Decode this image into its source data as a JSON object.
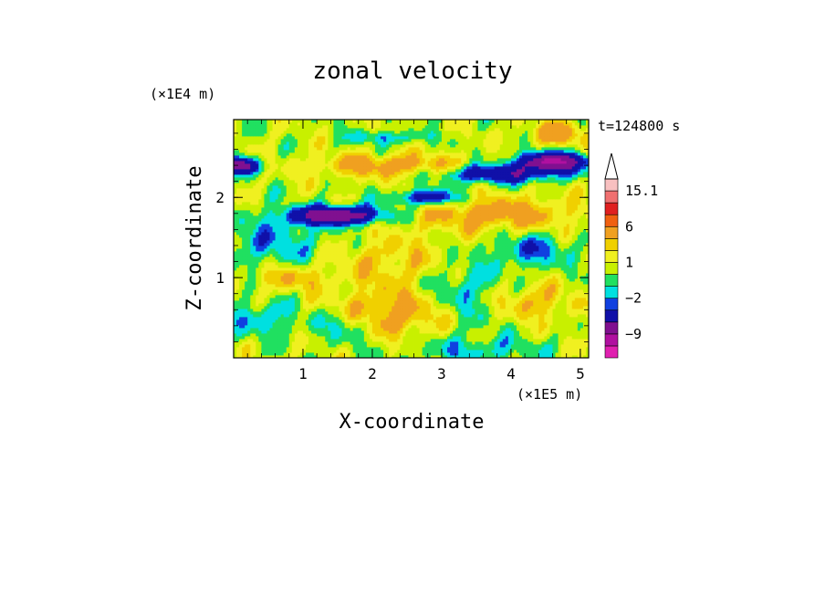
{
  "chart_data": {
    "type": "heatmap",
    "title": "zonal velocity",
    "xlabel": "X-coordinate",
    "ylabel": "Z-coordinate",
    "x_scale_label": "(×1E5 m)",
    "y_scale_label": "(×1E4 m)",
    "time_label": "t=124800 s",
    "xlim": [
      0,
      5.12
    ],
    "ylim": [
      0,
      2.97
    ],
    "x_ticks": [
      "1",
      "2",
      "3",
      "4",
      "5"
    ],
    "y_ticks": [
      "1",
      "2"
    ],
    "colorbar": {
      "levels": [
        -15.1,
        -12,
        -9,
        -6,
        -3,
        -2,
        -1,
        0,
        1,
        2,
        3,
        6,
        9,
        12,
        15.1
      ],
      "colors": [
        "#e020b0",
        "#b010a0",
        "#801090",
        "#1010a8",
        "#1040e0",
        "#00e0e0",
        "#20e060",
        "#c8f000",
        "#f0f020",
        "#f0d000",
        "#f0a020",
        "#f06010",
        "#e02020",
        "#f07070",
        "#f8c0c0"
      ],
      "labels": [
        "15.1",
        "6",
        "1",
        "−2",
        "−9"
      ],
      "label_values": [
        15.1,
        6,
        1,
        -2,
        -9
      ],
      "extend": "max"
    }
  }
}
